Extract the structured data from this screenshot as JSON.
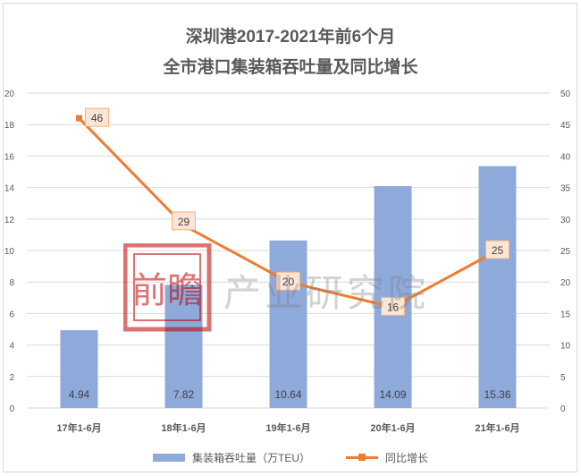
{
  "title_line1": "深圳港2017-2021年前6个月",
  "title_line2": "全市港口集装箱吞吐量及同比增长",
  "watermark": {
    "stamp": "前瞻",
    "text": "产业研究院"
  },
  "colors": {
    "bar": "#8eaadb",
    "line": "#ed7d31",
    "grid": "#d9d9d9",
    "label_bg": "#fbe5d6"
  },
  "chart_data": {
    "type": "bar",
    "categories": [
      "17年1-6月",
      "18年1-6月",
      "19年1-6月",
      "20年1-6月",
      "21年1-6月"
    ],
    "series": [
      {
        "name": "集装箱吞吐量（万TEU）",
        "type": "bar",
        "axis": "left",
        "values": [
          4.94,
          7.82,
          10.64,
          14.09,
          15.36
        ],
        "label_values": [
          "4.94",
          "7.82",
          "10.64",
          "14.09",
          "15.36"
        ]
      },
      {
        "name": "同比增长",
        "type": "line",
        "axis": "right",
        "values": [
          46,
          29,
          20,
          16,
          25
        ]
      }
    ],
    "y_left": {
      "min": 0,
      "max": 20,
      "ticks": [
        0,
        2,
        4,
        6,
        8,
        10,
        12,
        14,
        16,
        18,
        20
      ]
    },
    "y_right": {
      "min": 0,
      "max": 50,
      "ticks": [
        0,
        5,
        10,
        15,
        20,
        25,
        30,
        35,
        40,
        45,
        50
      ]
    },
    "grid": true,
    "legend": "bottom"
  }
}
